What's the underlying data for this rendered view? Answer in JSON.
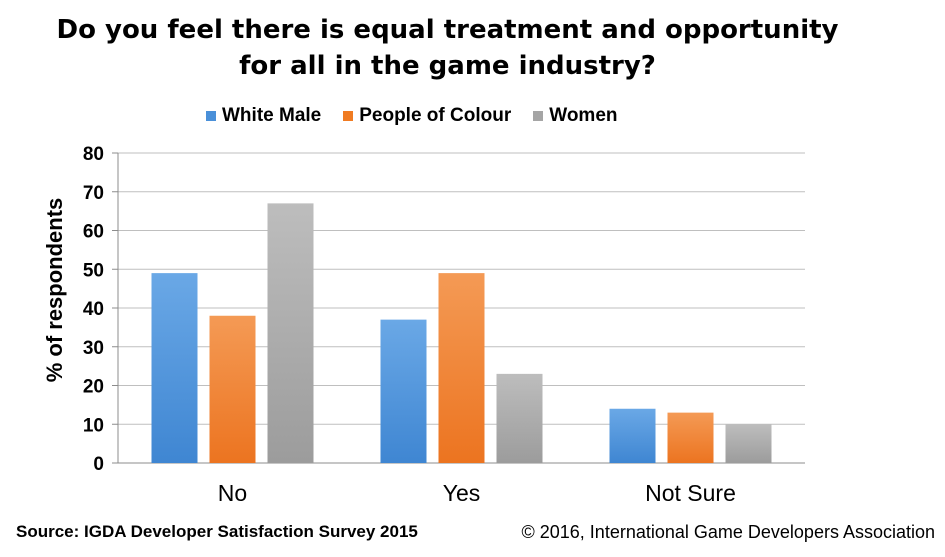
{
  "chart_data": {
    "type": "bar",
    "title_lines": [
      "Do you feel there is equal treatment and opportunity",
      "for all in the game industry?"
    ],
    "xlabel": "",
    "ylabel": "% of respondents",
    "ylim": [
      0,
      80
    ],
    "yticks": [
      0,
      10,
      20,
      30,
      40,
      50,
      60,
      70,
      80
    ],
    "grid": true,
    "legend_position": "top",
    "categories": [
      "No",
      "Yes",
      "Not Sure"
    ],
    "series": [
      {
        "name": "White Male",
        "color": "#4a90d9",
        "values": [
          49,
          37,
          14
        ]
      },
      {
        "name": "People of Colour",
        "color": "#f07b22",
        "values": [
          38,
          49,
          13
        ]
      },
      {
        "name": "Women",
        "color": "#a5a5a5",
        "values": [
          67,
          23,
          10
        ]
      }
    ]
  },
  "footer": {
    "source": "Source: IGDA Developer Satisfaction Survey 2015",
    "copyright": "© 2016, International Game Developers Association"
  }
}
